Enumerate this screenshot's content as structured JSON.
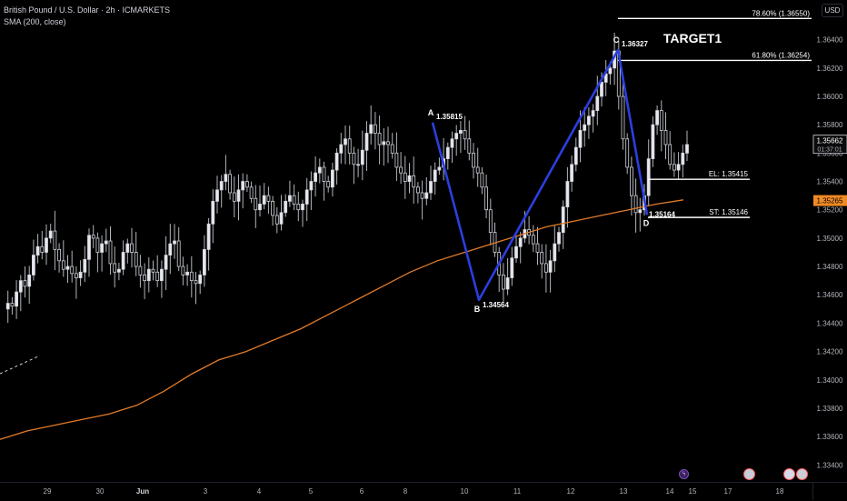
{
  "header": {
    "title": "British Pound / U.S. Dollar · 2h · ICMARKETS",
    "indicator": "SMA (200, close)"
  },
  "axis": {
    "unit": "USD",
    "y_ticks": [
      "1.36400",
      "1.36200",
      "1.36000",
      "1.35800",
      "1.35600",
      "1.35400",
      "1.35200",
      "1.35000",
      "1.34800",
      "1.34600",
      "1.34400",
      "1.34200",
      "1.34000",
      "1.33800",
      "1.33600",
      "1.33400"
    ],
    "x_ticks": [
      "29",
      "30",
      "Jun",
      "3",
      "4",
      "5",
      "6",
      "8",
      "10",
      "11",
      "12",
      "13",
      "14",
      "15",
      "17",
      "18"
    ],
    "badges": {
      "current_price": "1.35662",
      "countdown": "01:37:01",
      "sma_value": "1.35265"
    }
  },
  "colors": {
    "background": "#000000",
    "pattern": "#2b3fe0",
    "sma": "#e07b2a",
    "candle": "#d1d4dc",
    "level": "#ffffff",
    "sma_badge": "#f08a24"
  },
  "chart_data": {
    "type": "candlestick",
    "symbol": "British Pound / U.S. Dollar",
    "timeframe": "2h",
    "ylim": [
      1.3328,
      1.3668
    ],
    "x_tick_labels": [
      "29",
      "30",
      "Jun",
      "3",
      "4",
      "5",
      "6",
      "8",
      "10",
      "11",
      "12",
      "13",
      "14",
      "15",
      "17",
      "18"
    ],
    "price_trail": [
      1.345,
      1.3454,
      1.3452,
      1.3462,
      1.347,
      1.3466,
      1.3474,
      1.3488,
      1.3494,
      1.349,
      1.35,
      1.3505,
      1.3492,
      1.3484,
      1.3478,
      1.348,
      1.3475,
      1.3472,
      1.3476,
      1.3485,
      1.3502,
      1.35,
      1.349,
      1.3496,
      1.3498,
      1.3482,
      1.3476,
      1.3478,
      1.349,
      1.3496,
      1.349,
      1.348,
      1.3474,
      1.347,
      1.3478,
      1.3476,
      1.347,
      1.3478,
      1.3488,
      1.3496,
      1.3498,
      1.348,
      1.3474,
      1.3476,
      1.347,
      1.3468,
      1.3474,
      1.3492,
      1.351,
      1.3526,
      1.3534,
      1.354,
      1.3545,
      1.3532,
      1.3526,
      1.3534,
      1.354,
      1.3536,
      1.3528,
      1.352,
      1.3524,
      1.353,
      1.3526,
      1.3516,
      1.351,
      1.3518,
      1.3526,
      1.353,
      1.3524,
      1.352,
      1.3524,
      1.3534,
      1.354,
      1.3546,
      1.355,
      1.354,
      1.3536,
      1.3548,
      1.356,
      1.3566,
      1.357,
      1.356,
      1.3552,
      1.3552,
      1.3562,
      1.3574,
      1.358,
      1.3574,
      1.3566,
      1.3568,
      1.3566,
      1.356,
      1.355,
      1.3546,
      1.354,
      1.3544,
      1.3536,
      1.3532,
      1.3528,
      1.3532,
      1.354,
      1.3548,
      1.355,
      1.3556,
      1.3564,
      1.357,
      1.3574,
      1.3576,
      1.357,
      1.356,
      1.355,
      1.3546,
      1.3536,
      1.352,
      1.3504,
      1.349,
      1.3474,
      1.3464,
      1.3472,
      1.3486,
      1.3494,
      1.35,
      1.3506,
      1.3502,
      1.3496,
      1.349,
      1.3482,
      1.3476,
      1.3484,
      1.3496,
      1.3504,
      1.3522,
      1.354,
      1.3552,
      1.3564,
      1.3576,
      1.358,
      1.3586,
      1.359,
      1.36,
      1.361,
      1.3616,
      1.362,
      1.3632,
      1.36,
      1.357,
      1.355,
      1.353,
      1.3518,
      1.352,
      1.353,
      1.3556,
      1.358,
      1.359,
      1.3576,
      1.3566,
      1.3552,
      1.3548,
      1.3552,
      1.356,
      1.3566
    ],
    "sma_200": {
      "name": "SMA (200, close)",
      "values": [
        1.3358,
        1.3364,
        1.3368,
        1.3372,
        1.3376,
        1.3382,
        1.3392,
        1.3404,
        1.3414,
        1.342,
        1.3428,
        1.3436,
        1.3446,
        1.3456,
        1.3466,
        1.3476,
        1.3484,
        1.349,
        1.3496,
        1.3502,
        1.3508,
        1.3512,
        1.3516,
        1.352,
        1.3524,
        1.3527
      ]
    },
    "harmonic_pattern": {
      "points": [
        {
          "label": "A",
          "value": 1.35815,
          "text": "1.35815"
        },
        {
          "label": "B",
          "value": 1.34564,
          "text": "1.34564"
        },
        {
          "label": "C",
          "value": 1.36327,
          "text": "1.36327"
        },
        {
          "label": "D",
          "value": 1.35164,
          "text": "1.35164"
        }
      ]
    },
    "levels": [
      {
        "label": "78.60% (1.36550)",
        "value": 1.3655
      },
      {
        "label": "61.80% (1.36254)",
        "value": 1.36254
      },
      {
        "label": "EL: 1.35415",
        "value": 1.35415
      },
      {
        "label": "ST: 1.35146",
        "value": 1.35146
      }
    ],
    "annotations": [
      "TARGET1"
    ],
    "current_price": 1.35662,
    "sma_last": 1.35265
  }
}
